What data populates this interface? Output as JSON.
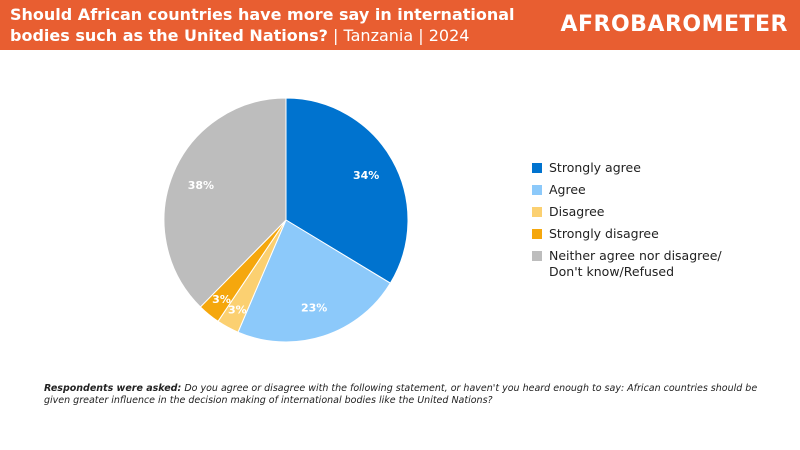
{
  "header": {
    "title_main": "Should African countries have more say in international bodies such as the United Nations?",
    "title_suffix": " | Tanzania | 2024",
    "brand": "AFROBAROMETER",
    "background_color": "#e85e31"
  },
  "chart_data": {
    "type": "pie",
    "slices": [
      {
        "label": "Strongly agree",
        "value": 34,
        "display": "34%",
        "color": "#0073cf"
      },
      {
        "label": "Agree",
        "value": 23,
        "display": "23%",
        "color": "#8cc9fa"
      },
      {
        "label": "Disagree",
        "value": 3,
        "display": "3%",
        "color": "#fbd071"
      },
      {
        "label": "Strongly disagree",
        "value": 3,
        "display": "3%",
        "color": "#f5a70d"
      },
      {
        "label": "Neither agree nor disagree/ Don't know/Refused",
        "value": 38,
        "display": "38%",
        "color": "#bdbdbd"
      }
    ],
    "start_angle_deg": 0,
    "direction": "clockwise",
    "legend_position": "right"
  },
  "footnote": {
    "lead": "Respondents were asked:",
    "text": " Do you agree or disagree with the following statement, or haven't you heard enough to say: African countries should be given greater influence in the decision making of international bodies like the United Nations?"
  }
}
